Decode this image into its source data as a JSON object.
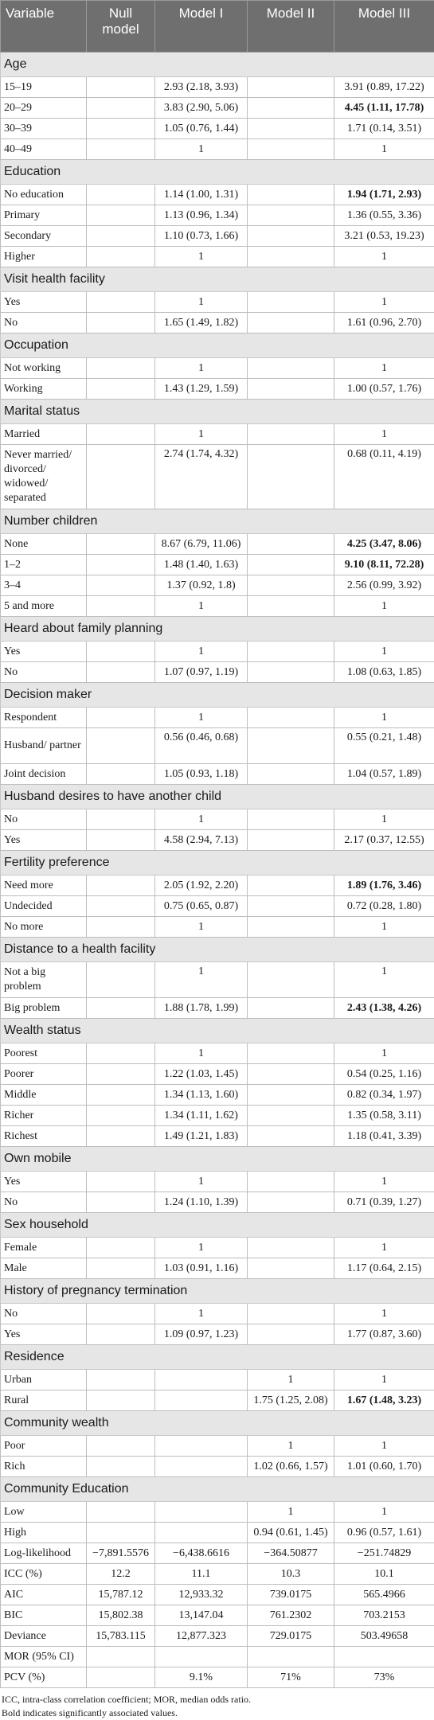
{
  "header": {
    "variable": "Variable",
    "null_model": "Null model",
    "model1": "Model I",
    "model2": "Model II",
    "model3": "Model III"
  },
  "sections": [
    {
      "title": "Age",
      "rows": [
        {
          "label": "15–19",
          "c": [
            "",
            "2.93 (2.18, 3.93)",
            "",
            "3.91 (0.89, 17.22)"
          ],
          "bold": [
            false,
            false,
            false,
            false
          ]
        },
        {
          "label": "20–29",
          "c": [
            "",
            "3.83 (2.90, 5.06)",
            "",
            "4.45 (1.11, 17.78)"
          ],
          "bold": [
            false,
            false,
            false,
            true
          ]
        },
        {
          "label": "30–39",
          "c": [
            "",
            "1.05 (0.76, 1.44)",
            "",
            "1.71 (0.14, 3.51)"
          ],
          "bold": [
            false,
            false,
            false,
            false
          ]
        },
        {
          "label": "40–49",
          "c": [
            "",
            "1",
            "",
            "1"
          ],
          "bold": [
            false,
            false,
            false,
            false
          ]
        }
      ]
    },
    {
      "title": "Education",
      "rows": [
        {
          "label": "No education",
          "c": [
            "",
            "1.14 (1.00, 1.31)",
            "",
            "1.94 (1.71, 2.93)"
          ],
          "bold": [
            false,
            false,
            false,
            true
          ]
        },
        {
          "label": "Primary",
          "c": [
            "",
            "1.13 (0.96, 1.34)",
            "",
            "1.36 (0.55, 3.36)"
          ],
          "bold": [
            false,
            false,
            false,
            false
          ]
        },
        {
          "label": "Secondary",
          "c": [
            "",
            "1.10 (0.73, 1.66)",
            "",
            "3.21 (0.53, 19.23)"
          ],
          "bold": [
            false,
            false,
            false,
            false
          ]
        },
        {
          "label": "Higher",
          "c": [
            "",
            "1",
            "",
            "1"
          ],
          "bold": [
            false,
            false,
            false,
            false
          ]
        }
      ]
    },
    {
      "title": "Visit health facility",
      "rows": [
        {
          "label": "Yes",
          "c": [
            "",
            "1",
            "",
            "1"
          ],
          "bold": [
            false,
            false,
            false,
            false
          ]
        },
        {
          "label": "No",
          "c": [
            "",
            "1.65 (1.49, 1.82)",
            "",
            "1.61 (0.96, 2.70)"
          ],
          "bold": [
            false,
            false,
            false,
            false
          ]
        }
      ]
    },
    {
      "title": "Occupation",
      "rows": [
        {
          "label": "Not working",
          "c": [
            "",
            "1",
            "",
            "1"
          ],
          "bold": [
            false,
            false,
            false,
            false
          ]
        },
        {
          "label": "Working",
          "c": [
            "",
            "1.43 (1.29, 1.59)",
            "",
            "1.00 (0.57, 1.76)"
          ],
          "bold": [
            false,
            false,
            false,
            false
          ]
        }
      ]
    },
    {
      "title": "Marital status",
      "rows": [
        {
          "label": "Married",
          "c": [
            "",
            "1",
            "",
            "1"
          ],
          "bold": [
            false,
            false,
            false,
            false
          ]
        },
        {
          "label": "Never married/ divorced/ widowed/ separated",
          "c": [
            "",
            "2.74 (1.74, 4.32)",
            "",
            "0.68 (0.11, 4.19)"
          ],
          "bold": [
            false,
            false,
            false,
            false
          ],
          "h": 4
        }
      ]
    },
    {
      "title": "Number children",
      "rows": [
        {
          "label": "None",
          "c": [
            "",
            "8.67 (6.79, 11.06)",
            "",
            "4.25 (3.47, 8.06)"
          ],
          "bold": [
            false,
            false,
            false,
            true
          ]
        },
        {
          "label": "1–2",
          "c": [
            "",
            "1.48 (1.40, 1.63)",
            "",
            "9.10 (8.11, 72.28)"
          ],
          "bold": [
            false,
            false,
            false,
            true
          ]
        },
        {
          "label": "3–4",
          "c": [
            "",
            "1.37 (0.92, 1.8)",
            "",
            "2.56 (0.99, 3.92)"
          ],
          "bold": [
            false,
            false,
            false,
            false
          ]
        },
        {
          "label": "5 and more",
          "c": [
            "",
            "1",
            "",
            "1"
          ],
          "bold": [
            false,
            false,
            false,
            false
          ]
        }
      ]
    },
    {
      "title": "Heard about family planning",
      "rows": [
        {
          "label": "Yes",
          "c": [
            "",
            "1",
            "",
            "1"
          ],
          "bold": [
            false,
            false,
            false,
            false
          ]
        },
        {
          "label": "No",
          "c": [
            "",
            "1.07 (0.97, 1.19)",
            "",
            "1.08 (0.63, 1.85)"
          ],
          "bold": [
            false,
            false,
            false,
            false
          ]
        }
      ]
    },
    {
      "title": "Decision maker",
      "rows": [
        {
          "label": "Respondent",
          "c": [
            "",
            "1",
            "",
            "1"
          ],
          "bold": [
            false,
            false,
            false,
            false
          ]
        },
        {
          "label": "Husband/ partner",
          "c": [
            "",
            "0.56 (0.46, 0.68)",
            "",
            "0.55 (0.21, 1.48)"
          ],
          "bold": [
            false,
            false,
            false,
            false
          ],
          "h": 2
        },
        {
          "label": "Joint decision",
          "c": [
            "",
            "1.05 (0.93, 1.18)",
            "",
            "1.04 (0.57, 1.89)"
          ],
          "bold": [
            false,
            false,
            false,
            false
          ]
        }
      ]
    },
    {
      "title": "Husband desires to have another child",
      "rows": [
        {
          "label": "No",
          "c": [
            "",
            "1",
            "",
            "1"
          ],
          "bold": [
            false,
            false,
            false,
            false
          ]
        },
        {
          "label": "Yes",
          "c": [
            "",
            "4.58 (2.94, 7.13)",
            "",
            "2.17 (0.37, 12.55)"
          ],
          "bold": [
            false,
            false,
            false,
            false
          ]
        }
      ]
    },
    {
      "title": "Fertility preference",
      "rows": [
        {
          "label": "Need more",
          "c": [
            "",
            "2.05 (1.92, 2.20)",
            "",
            "1.89 (1.76, 3.46)"
          ],
          "bold": [
            false,
            false,
            false,
            true
          ]
        },
        {
          "label": "Undecided",
          "c": [
            "",
            "0.75 (0.65, 0.87)",
            "",
            "0.72 (0.28, 1.80)"
          ],
          "bold": [
            false,
            false,
            false,
            false
          ]
        },
        {
          "label": "No more",
          "c": [
            "",
            "1",
            "",
            "1"
          ],
          "bold": [
            false,
            false,
            false,
            false
          ]
        }
      ]
    },
    {
      "title": "Distance to a health facility",
      "rows": [
        {
          "label": "Not a big problem",
          "c": [
            "",
            "1",
            "",
            "1"
          ],
          "bold": [
            false,
            false,
            false,
            false
          ],
          "h": 2
        },
        {
          "label": "Big problem",
          "c": [
            "",
            "1.88 (1.78, 1.99)",
            "",
            "2.43 (1.38, 4.26)"
          ],
          "bold": [
            false,
            false,
            false,
            true
          ]
        }
      ]
    },
    {
      "title": "Wealth status",
      "rows": [
        {
          "label": "Poorest",
          "c": [
            "",
            "1",
            "",
            "1"
          ],
          "bold": [
            false,
            false,
            false,
            false
          ]
        },
        {
          "label": "Poorer",
          "c": [
            "",
            "1.22 (1.03, 1.45)",
            "",
            "0.54 (0.25, 1.16)"
          ],
          "bold": [
            false,
            false,
            false,
            false
          ]
        },
        {
          "label": "Middle",
          "c": [
            "",
            "1.34 (1.13, 1.60)",
            "",
            "0.82 (0.34, 1.97)"
          ],
          "bold": [
            false,
            false,
            false,
            false
          ]
        },
        {
          "label": "Richer",
          "c": [
            "",
            "1.34 (1.11, 1.62)",
            "",
            "1.35 (0.58, 3.11)"
          ],
          "bold": [
            false,
            false,
            false,
            false
          ]
        },
        {
          "label": "Richest",
          "c": [
            "",
            "1.49 (1.21, 1.83)",
            "",
            "1.18 (0.41, 3.39)"
          ],
          "bold": [
            false,
            false,
            false,
            false
          ]
        }
      ]
    },
    {
      "title": "Own mobile",
      "rows": [
        {
          "label": "Yes",
          "c": [
            "",
            "1",
            "",
            "1"
          ],
          "bold": [
            false,
            false,
            false,
            false
          ]
        },
        {
          "label": "No",
          "c": [
            "",
            "1.24 (1.10, 1.39)",
            "",
            "0.71 (0.39, 1.27)"
          ],
          "bold": [
            false,
            false,
            false,
            false
          ]
        }
      ]
    },
    {
      "title": "Sex household",
      "rows": [
        {
          "label": "Female",
          "c": [
            "",
            "1",
            "",
            "1"
          ],
          "bold": [
            false,
            false,
            false,
            false
          ]
        },
        {
          "label": "Male",
          "c": [
            "",
            "1.03 (0.91, 1.16)",
            "",
            "1.17 (0.64, 2.15)"
          ],
          "bold": [
            false,
            false,
            false,
            false
          ]
        }
      ]
    },
    {
      "title": "History of pregnancy termination",
      "rows": [
        {
          "label": "No",
          "c": [
            "",
            "1",
            "",
            "1"
          ],
          "bold": [
            false,
            false,
            false,
            false
          ]
        },
        {
          "label": "Yes",
          "c": [
            "",
            "1.09 (0.97, 1.23)",
            "",
            "1.77 (0.87, 3.60)"
          ],
          "bold": [
            false,
            false,
            false,
            false
          ]
        }
      ]
    },
    {
      "title": "Residence",
      "rows": [
        {
          "label": "Urban",
          "c": [
            "",
            "",
            "1",
            "1"
          ],
          "bold": [
            false,
            false,
            false,
            false
          ]
        },
        {
          "label": "Rural",
          "c": [
            "",
            "",
            "1.75 (1.25, 2.08)",
            "1.67 (1.48, 3.23)"
          ],
          "bold": [
            false,
            false,
            false,
            true
          ]
        }
      ]
    },
    {
      "title": "Community wealth",
      "rows": [
        {
          "label": "Poor",
          "c": [
            "",
            "",
            "1",
            "1"
          ],
          "bold": [
            false,
            false,
            false,
            false
          ]
        },
        {
          "label": "Rich",
          "c": [
            "",
            "",
            "1.02 (0.66, 1.57)",
            "1.01 (0.60, 1.70)"
          ],
          "bold": [
            false,
            false,
            false,
            false
          ]
        }
      ]
    },
    {
      "title": "Community Education",
      "rows": [
        {
          "label": "Low",
          "c": [
            "",
            "",
            "1",
            "1"
          ],
          "bold": [
            false,
            false,
            false,
            false
          ]
        },
        {
          "label": "High",
          "c": [
            "",
            "",
            "0.94 (0.61, 1.45)",
            "0.96 (0.57, 1.61)"
          ],
          "bold": [
            false,
            false,
            false,
            false
          ]
        }
      ]
    }
  ],
  "fit_rows": [
    {
      "label": "Log-likelihood",
      "c": [
        "−7,891.5576",
        "−6,438.6616",
        "−364.50877",
        "−251.74829"
      ]
    },
    {
      "label": "ICC (%)",
      "c": [
        "12.2",
        "11.1",
        "10.3",
        "10.1"
      ]
    },
    {
      "label": "AIC",
      "c": [
        "15,787.12",
        "12,933.32",
        "739.0175",
        "565.4966"
      ]
    },
    {
      "label": "BIC",
      "c": [
        "15,802.38",
        "13,147.04",
        "761.2302",
        "703.2153"
      ]
    },
    {
      "label": "Deviance",
      "c": [
        "15,783.115",
        "12,877.323",
        "729.0175",
        "503.49658"
      ]
    },
    {
      "label": "MOR (95% CI)",
      "c": [
        "",
        "",
        "",
        ""
      ]
    },
    {
      "label": "PCV (%)",
      "c": [
        "",
        "9.1%",
        "71%",
        "73%"
      ]
    }
  ],
  "footnotes": [
    "ICC, intra-class correlation coefficient; MOR, median odds ratio.",
    "Bold indicates significantly associated values."
  ]
}
